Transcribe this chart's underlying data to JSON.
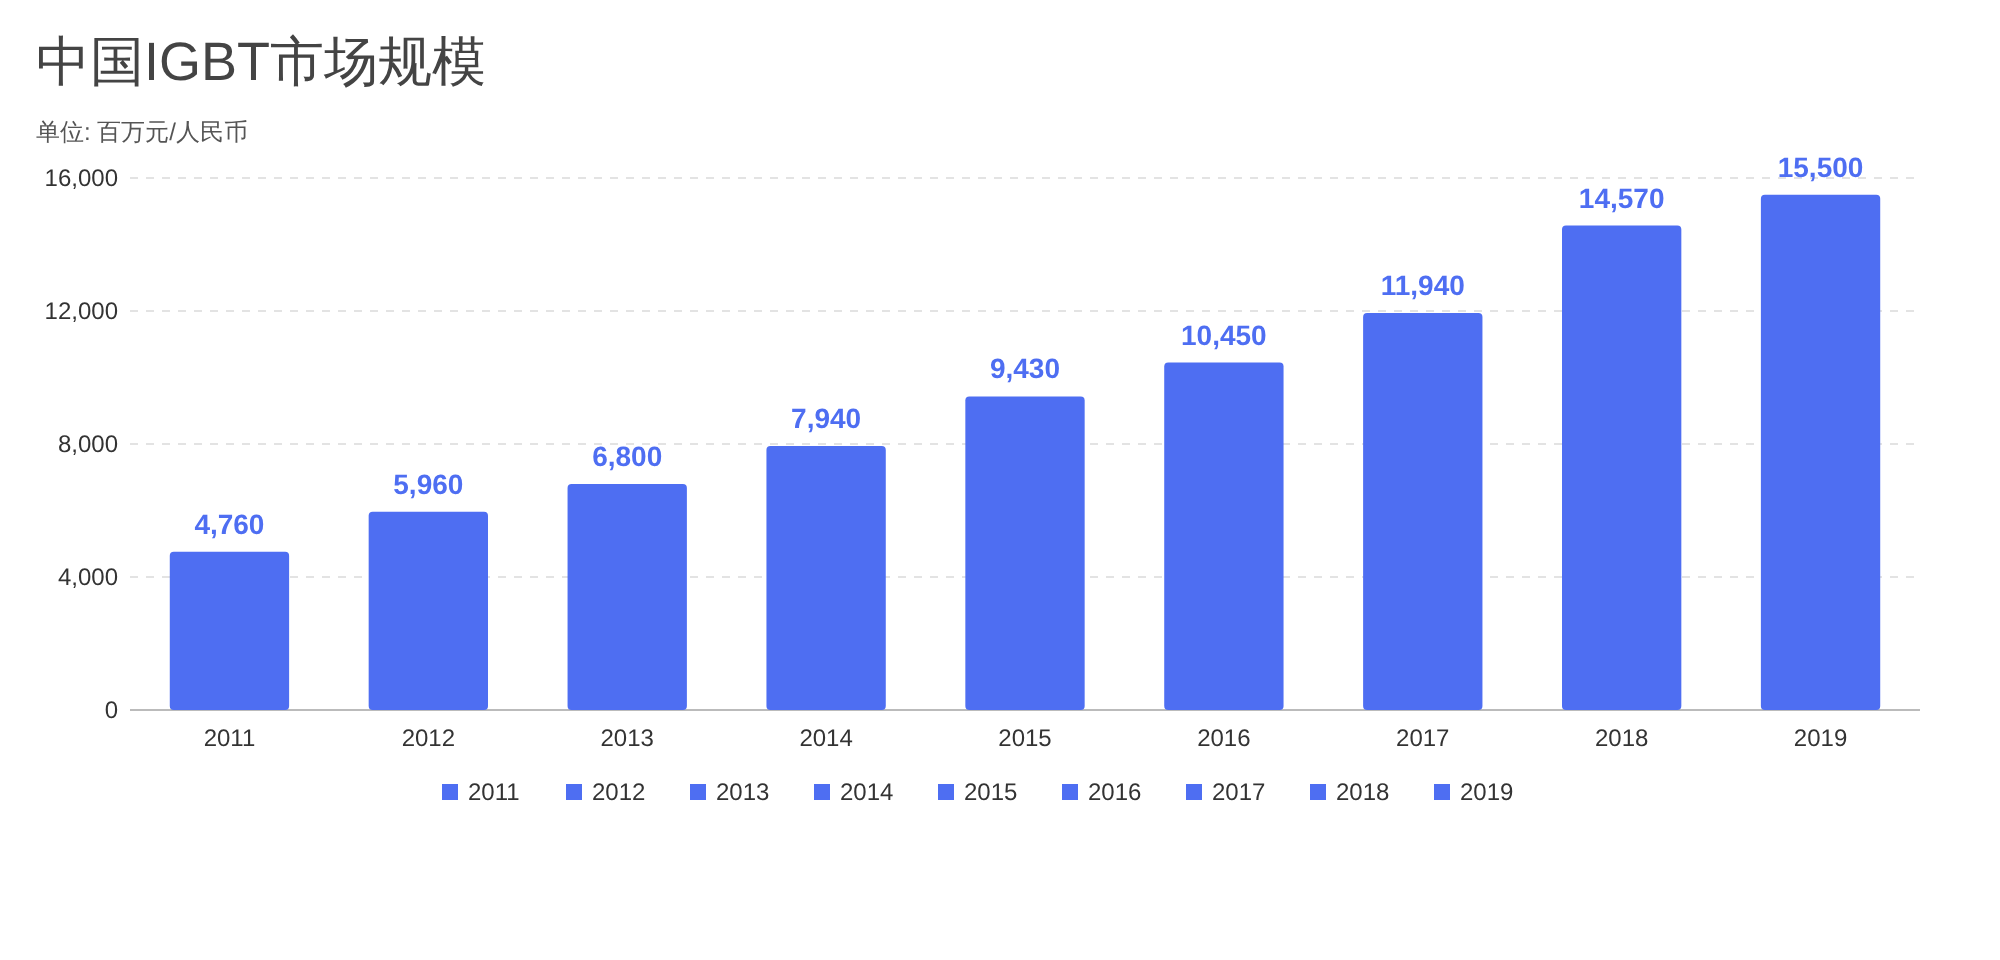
{
  "chart_data": {
    "type": "bar",
    "title": "中国IGBT市场规模",
    "subtitle": "单位: 百万元/人民币",
    "categories": [
      "2011",
      "2012",
      "2013",
      "2014",
      "2015",
      "2016",
      "2017",
      "2018",
      "2019"
    ],
    "stacked": true,
    "series": [
      {
        "name": "2011",
        "color": "#4e6ef2",
        "values": [
          4760,
          null,
          null,
          null,
          null,
          null,
          null,
          null,
          null
        ],
        "value_labels": [
          "4,760",
          null,
          null,
          null,
          null,
          null,
          null,
          null,
          null
        ]
      },
      {
        "name": "2012",
        "color": "#4e6ef2",
        "values": [
          null,
          5960,
          null,
          null,
          null,
          null,
          null,
          null,
          null
        ],
        "value_labels": [
          null,
          "5,960",
          null,
          null,
          null,
          null,
          null,
          null,
          null
        ]
      },
      {
        "name": "2013",
        "color": "#4e6ef2",
        "values": [
          null,
          null,
          6800,
          null,
          null,
          null,
          null,
          null,
          null
        ],
        "value_labels": [
          null,
          null,
          "6,800",
          null,
          null,
          null,
          null,
          null,
          null
        ]
      },
      {
        "name": "2014",
        "color": "#4e6ef2",
        "values": [
          null,
          null,
          null,
          7940,
          null,
          null,
          null,
          null,
          null
        ],
        "value_labels": [
          null,
          null,
          null,
          "7,940",
          null,
          null,
          null,
          null,
          null
        ]
      },
      {
        "name": "2015",
        "color": "#4e6ef2",
        "values": [
          null,
          null,
          null,
          null,
          9430,
          null,
          null,
          null,
          null
        ],
        "value_labels": [
          null,
          null,
          null,
          null,
          "9,430",
          null,
          null,
          null,
          null
        ]
      },
      {
        "name": "2016",
        "color": "#4e6ef2",
        "values": [
          null,
          null,
          null,
          null,
          null,
          10450,
          null,
          null,
          null
        ],
        "value_labels": [
          null,
          null,
          null,
          null,
          null,
          "10,450",
          null,
          null,
          null
        ]
      },
      {
        "name": "2017",
        "color": "#4e6ef2",
        "values": [
          null,
          null,
          null,
          null,
          null,
          null,
          11940,
          null,
          null
        ],
        "value_labels": [
          null,
          null,
          null,
          null,
          null,
          null,
          "11,940",
          null,
          null
        ]
      },
      {
        "name": "2018",
        "color": "#4e6ef2",
        "values": [
          null,
          null,
          null,
          null,
          null,
          null,
          null,
          14570,
          null
        ],
        "value_labels": [
          null,
          null,
          null,
          null,
          null,
          null,
          null,
          "14,570",
          null
        ]
      },
      {
        "name": "2019",
        "color": "#4e6ef2",
        "values": [
          null,
          null,
          null,
          null,
          null,
          null,
          null,
          null,
          15500
        ],
        "value_labels": [
          null,
          null,
          null,
          null,
          null,
          null,
          null,
          null,
          "15,500"
        ]
      }
    ],
    "ylim": [
      0,
      16000
    ],
    "yticks": [
      0,
      {
        "value": 4000,
        "label": "4,000"
      },
      {
        "value": 8000,
        "label": "8,000"
      },
      {
        "value": 12000,
        "label": "12,000"
      },
      {
        "value": 16000,
        "label": "16,000"
      }
    ],
    "grid": "y",
    "legend": "bottom"
  }
}
